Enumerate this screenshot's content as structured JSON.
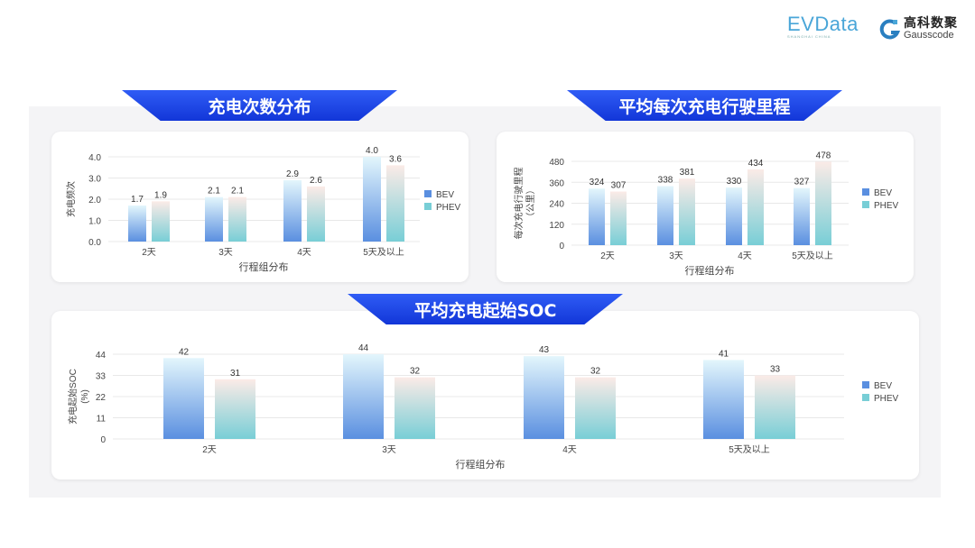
{
  "logos": {
    "evdata": "EVData",
    "evdata_sub": "SHANGHAI CHINA",
    "gauss_cn": "高科数聚",
    "gauss_en": "Gausscode"
  },
  "colors": {
    "banner": "#1a44e6",
    "bev_top": "#e3f6fc",
    "bev_bottom": "#5a8fe0",
    "phev_top": "#fbebe7",
    "phev_bottom": "#78ced6",
    "grid": "#e8e8e8"
  },
  "chart_data": [
    {
      "type": "bar",
      "title": "充电次数分布",
      "categories": [
        "2天",
        "3天",
        "4天",
        "5天及以上"
      ],
      "series": [
        {
          "name": "BEV",
          "values": [
            1.7,
            2.1,
            2.9,
            4.0
          ]
        },
        {
          "name": "PHEV",
          "values": [
            1.9,
            2.1,
            2.6,
            3.6
          ]
        }
      ],
      "xlabel": "行程组分布",
      "ylabel": "充电频次",
      "ylim": [
        0,
        4
      ],
      "yticks": [
        "0.0",
        "1.0",
        "2.0",
        "3.0",
        "4.0"
      ],
      "decimals": 1,
      "grid": true,
      "legend": "right"
    },
    {
      "type": "bar",
      "title": "平均每次充电行驶里程",
      "categories": [
        "2天",
        "3天",
        "4天",
        "5天及以上"
      ],
      "series": [
        {
          "name": "BEV",
          "values": [
            324,
            338,
            330,
            327
          ]
        },
        {
          "name": "PHEV",
          "values": [
            307,
            381,
            434,
            478
          ]
        }
      ],
      "xlabel": "行程组分布",
      "ylabel": "每次充电行驶里程\n（公里）",
      "ylim": [
        0,
        480
      ],
      "yticks": [
        "0",
        "120",
        "240",
        "360",
        "480"
      ],
      "decimals": 0,
      "grid": true,
      "legend": "right"
    },
    {
      "type": "bar",
      "title": "平均充电起始SOC",
      "categories": [
        "2天",
        "3天",
        "4天",
        "5天及以上"
      ],
      "series": [
        {
          "name": "BEV",
          "values": [
            42,
            44,
            43,
            41
          ]
        },
        {
          "name": "PHEV",
          "values": [
            31,
            32,
            32,
            33
          ]
        }
      ],
      "xlabel": "行程组分布",
      "ylabel": "充电起始SOC\n(%)",
      "ylim": [
        0,
        44
      ],
      "yticks": [
        "0",
        "11",
        "22",
        "33",
        "44"
      ],
      "decimals": 0,
      "grid": true,
      "legend": "right"
    }
  ]
}
